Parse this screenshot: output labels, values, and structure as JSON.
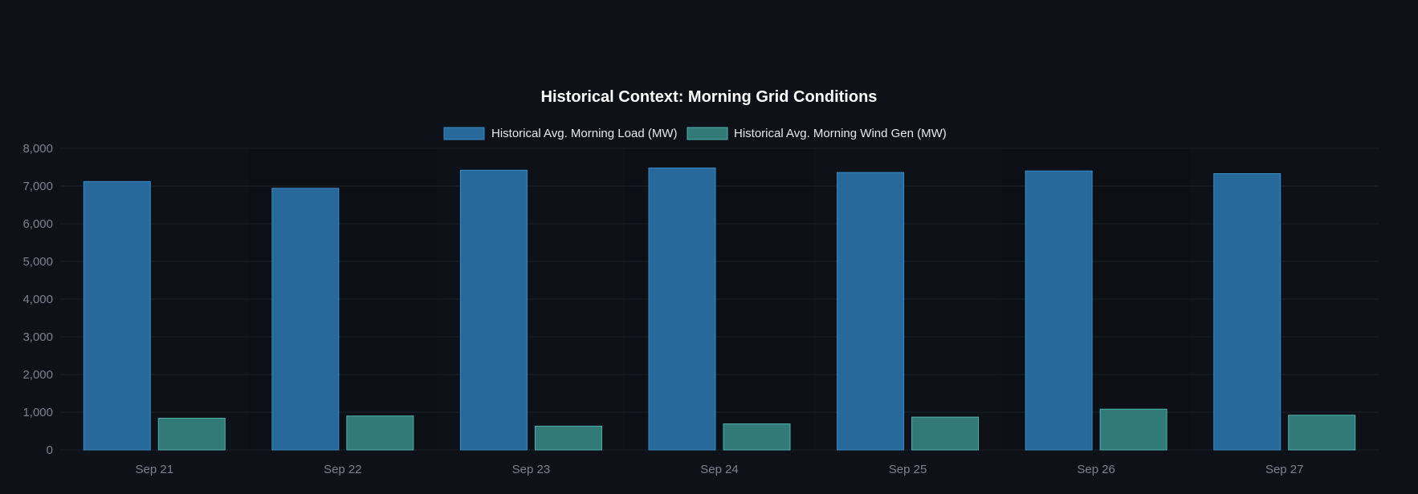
{
  "chart_data": {
    "type": "bar",
    "title": "Historical Context: Morning Grid Conditions",
    "xlabel": "",
    "ylabel": "",
    "categories": [
      "Sep 21",
      "Sep 22",
      "Sep 23",
      "Sep 24",
      "Sep 25",
      "Sep 26",
      "Sep 27"
    ],
    "series": [
      {
        "name": "Historical Avg. Morning Load (MW)",
        "values": [
          7120,
          6940,
          7420,
          7480,
          7360,
          7400,
          7330
        ],
        "fill": "#26699a",
        "stroke": "#3a8cc7"
      },
      {
        "name": "Historical Avg. Morning Wind Gen (MW)",
        "values": [
          840,
          900,
          630,
          690,
          870,
          1080,
          920
        ],
        "fill": "#317a78",
        "stroke": "#4fb3ad"
      }
    ],
    "ylim": [
      0,
      8000
    ],
    "yticks": [
      "0",
      "1,000",
      "2,000",
      "3,000",
      "4,000",
      "5,000",
      "6,000",
      "7,000",
      "8,000"
    ],
    "grid": true,
    "legend": "top-center"
  }
}
